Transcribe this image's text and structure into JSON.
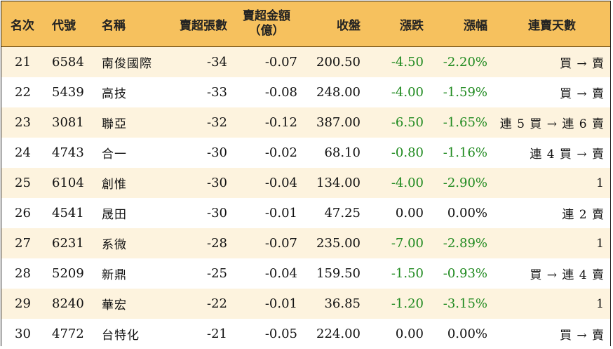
{
  "header": {
    "rank": "名次",
    "code": "代號",
    "name": "名稱",
    "sell_lots": "賣超張數",
    "sell_amount_line1": "賣超金額",
    "sell_amount_line2": "（億）",
    "close": "收盤",
    "change": "漲跌",
    "change_pct": "漲幅",
    "streak": "連賣天數"
  },
  "rows": [
    {
      "rank": "21",
      "code": "6584",
      "name": "南俊國際",
      "lots": "-34",
      "amount": "-0.07",
      "close": "200.50",
      "change": "-4.50",
      "pct": "-2.20%",
      "streak": "買 → 賣"
    },
    {
      "rank": "22",
      "code": "5439",
      "name": "高技",
      "lots": "-33",
      "amount": "-0.08",
      "close": "248.00",
      "change": "-4.00",
      "pct": "-1.59%",
      "streak": "買 → 賣"
    },
    {
      "rank": "23",
      "code": "3081",
      "name": "聯亞",
      "lots": "-32",
      "amount": "-0.12",
      "close": "387.00",
      "change": "-6.50",
      "pct": "-1.65%",
      "streak": "連 5 買 → 連 6 賣"
    },
    {
      "rank": "24",
      "code": "4743",
      "name": "合一",
      "lots": "-30",
      "amount": "-0.02",
      "close": "68.10",
      "change": "-0.80",
      "pct": "-1.16%",
      "streak": "連 4 買 → 賣"
    },
    {
      "rank": "25",
      "code": "6104",
      "name": "創惟",
      "lots": "-30",
      "amount": "-0.04",
      "close": "134.00",
      "change": "-4.00",
      "pct": "-2.90%",
      "streak": "1"
    },
    {
      "rank": "26",
      "code": "4541",
      "name": "晟田",
      "lots": "-30",
      "amount": "-0.01",
      "close": "47.25",
      "change": "0.00",
      "pct": "0.00%",
      "streak": "連 2 賣"
    },
    {
      "rank": "27",
      "code": "6231",
      "name": "系微",
      "lots": "-28",
      "amount": "-0.07",
      "close": "235.00",
      "change": "-7.00",
      "pct": "-2.89%",
      "streak": "1"
    },
    {
      "rank": "28",
      "code": "5209",
      "name": "新鼎",
      "lots": "-25",
      "amount": "-0.04",
      "close": "159.50",
      "change": "-1.50",
      "pct": "-0.93%",
      "streak": "買 → 連 4 賣"
    },
    {
      "rank": "29",
      "code": "8240",
      "name": "華宏",
      "lots": "-22",
      "amount": "-0.01",
      "close": "36.85",
      "change": "-1.20",
      "pct": "-3.15%",
      "streak": "1"
    },
    {
      "rank": "30",
      "code": "4772",
      "name": "台特化",
      "lots": "-21",
      "amount": "-0.05",
      "close": "224.00",
      "change": "0.00",
      "pct": "0.00%",
      "streak": "買 → 賣"
    }
  ],
  "colors": {
    "header_bg": "#f6c15e",
    "stripe_bg": "#fdf3de",
    "negative_change": "#1f8a1f"
  }
}
